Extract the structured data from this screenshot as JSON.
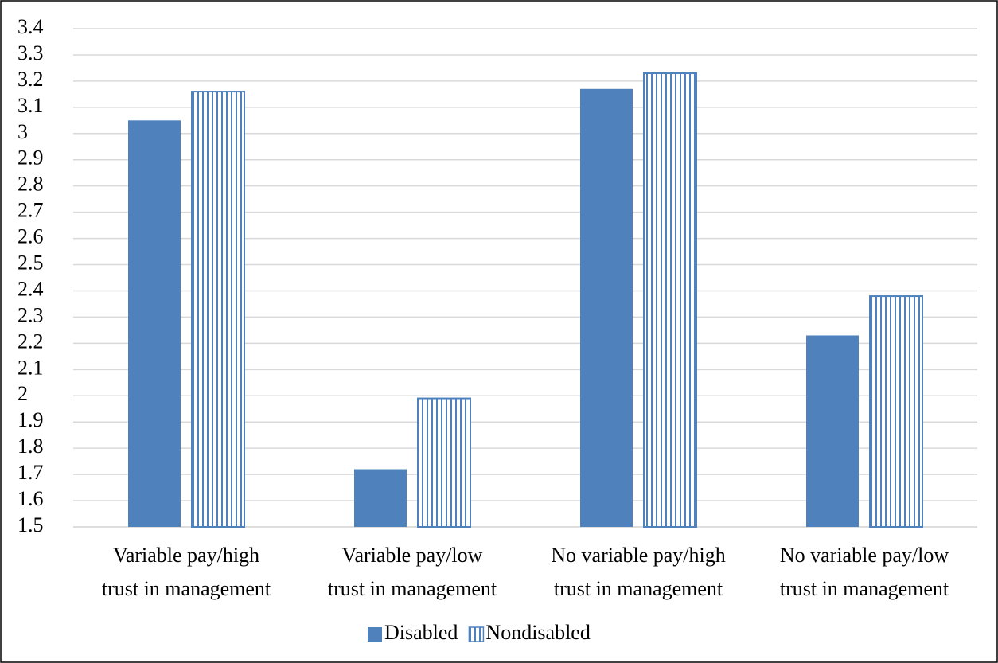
{
  "chart_data": {
    "type": "bar",
    "categories": [
      "Variable pay/high trust in management",
      "Variable pay/low trust in management",
      "No variable pay/high trust in management",
      "No variable pay/low trust in management"
    ],
    "series": [
      {
        "name": "Disabled",
        "color": "#4f81bd",
        "pattern": "solid",
        "values": [
          3.05,
          1.72,
          3.17,
          2.23
        ]
      },
      {
        "name": "Nondisabled",
        "color": "#4f81bd",
        "pattern": "vertical-lines",
        "values": [
          3.16,
          1.99,
          3.23,
          2.38
        ]
      }
    ],
    "ylim": [
      1.5,
      3.4
    ],
    "yticks": [
      1.5,
      1.6,
      1.7,
      1.8,
      1.9,
      2,
      2.1,
      2.2,
      2.3,
      2.4,
      2.5,
      2.6,
      2.7,
      2.8,
      2.9,
      3,
      3.1,
      3.2,
      3.3,
      3.4
    ],
    "grid": true,
    "legend": "bottom"
  }
}
